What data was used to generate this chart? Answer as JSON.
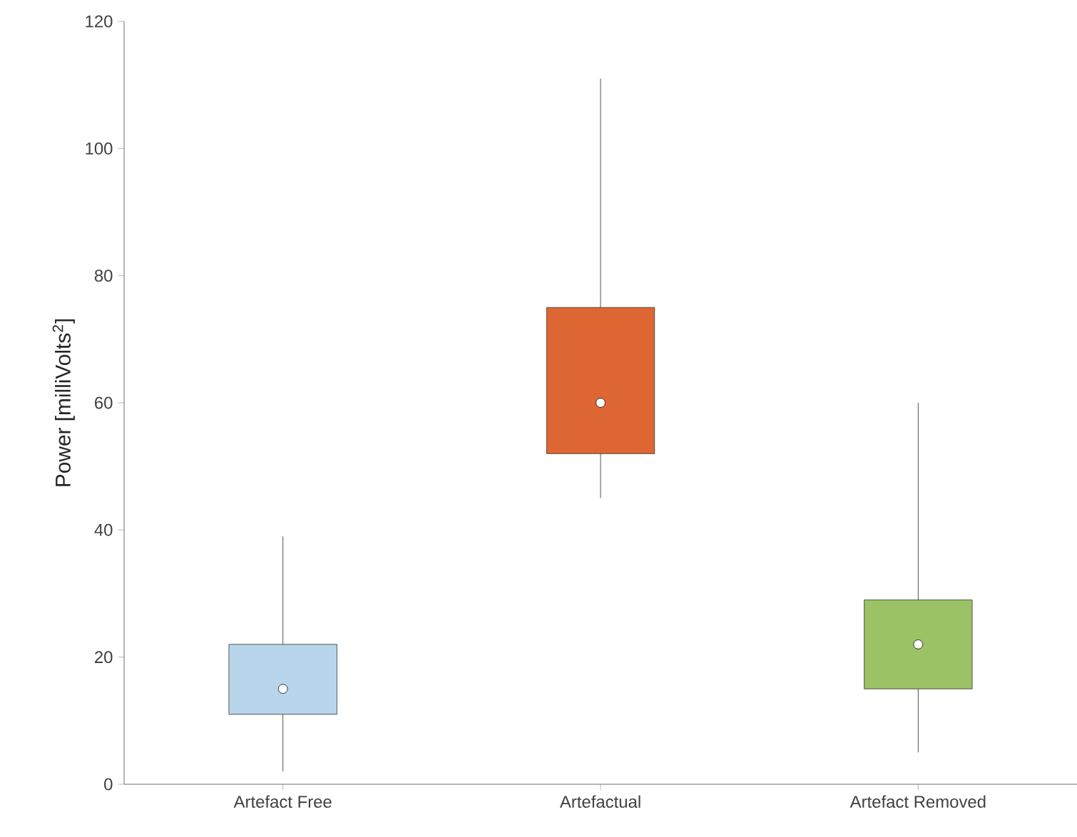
{
  "chart_data": {
    "type": "box",
    "ylabel": "Power [milliVolts$^{2}$]",
    "categories": [
      "Artefact Free",
      "Artefactual",
      "Artefact Removed"
    ],
    "boxes": [
      {
        "low": 2,
        "q1": 11,
        "median": 15,
        "q3": 22,
        "high": 39
      },
      {
        "low": 45,
        "q1": 52,
        "median": 60,
        "q3": 75,
        "high": 111
      },
      {
        "low": 5,
        "q1": 15,
        "median": 22,
        "q3": 29,
        "high": 60
      }
    ],
    "colors": [
      "#b7d6ec",
      "#de6633",
      "#9bc264"
    ],
    "ylim": [
      0,
      120
    ],
    "yticks": [
      0,
      20,
      40,
      60,
      80,
      100,
      120
    ]
  }
}
